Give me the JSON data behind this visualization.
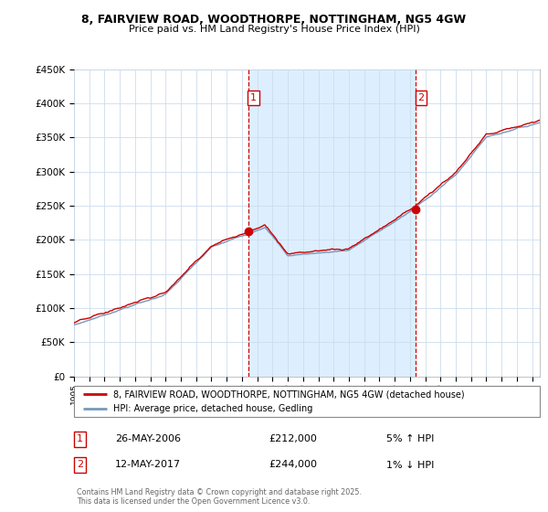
{
  "title_line1": "8, FAIRVIEW ROAD, WOODTHORPE, NOTTINGHAM, NG5 4GW",
  "title_line2": "Price paid vs. HM Land Registry's House Price Index (HPI)",
  "background_color": "#ffffff",
  "plot_bg_color": "#ffffff",
  "grid_color": "#ccddee",
  "shade_color": "#ddeeff",
  "sale1_date": "26-MAY-2006",
  "sale1_price": 212000,
  "sale1_hpi_change": "5% ↑ HPI",
  "sale2_date": "12-MAY-2017",
  "sale2_price": 244000,
  "sale2_hpi_change": "1% ↓ HPI",
  "legend_label_red": "8, FAIRVIEW ROAD, WOODTHORPE, NOTTINGHAM, NG5 4GW (detached house)",
  "legend_label_blue": "HPI: Average price, detached house, Gedling",
  "copyright_text": "Contains HM Land Registry data © Crown copyright and database right 2025.\nThis data is licensed under the Open Government Licence v3.0.",
  "red_color": "#cc0000",
  "blue_color": "#7799bb",
  "vline_color": "#cc0000",
  "sale_marker_color": "#cc0000",
  "ymin": 0,
  "ymax": 450000,
  "xmin": 1995.0,
  "xmax": 2025.5,
  "sale1_x": 2006.3973,
  "sale2_x": 2017.3589
}
